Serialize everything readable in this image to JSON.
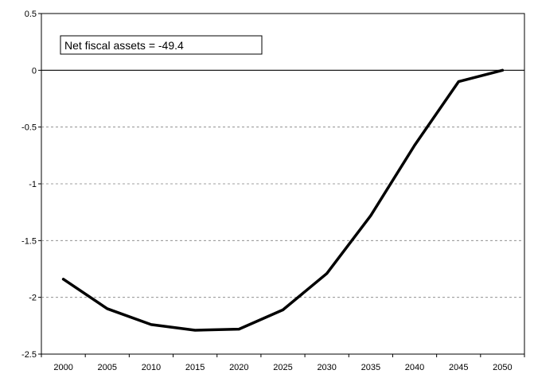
{
  "chart_data": {
    "type": "line",
    "title": "",
    "xlabel": "",
    "ylabel": "",
    "x": [
      2000,
      2005,
      2010,
      2015,
      2020,
      2025,
      2030,
      2035,
      2040,
      2045,
      2050
    ],
    "series": [
      {
        "values": [
          -1.84,
          -2.1,
          -2.24,
          -2.29,
          -2.28,
          -2.11,
          -1.79,
          -1.28,
          -0.66,
          -0.1,
          0.0
        ]
      }
    ],
    "xticks": [
      "2000",
      "2005",
      "2010",
      "2015",
      "2020",
      "2025",
      "2030",
      "2035",
      "2040",
      "2045",
      "2050"
    ],
    "yticks": [
      "0.5",
      "0",
      "-0.5",
      "-1",
      "-1.5",
      "-2",
      "-2.5"
    ],
    "ytick_values": [
      0.5,
      0,
      -0.5,
      -1,
      -1.5,
      -2,
      -2.5
    ],
    "ylim": [
      -2.5,
      0.5
    ],
    "xlim": [
      1997.5,
      2052.5
    ],
    "grid": "horizontal dashed",
    "zero_line": true,
    "line_color": "#000000",
    "annotation": "Net fiscal assets = -49.4"
  }
}
